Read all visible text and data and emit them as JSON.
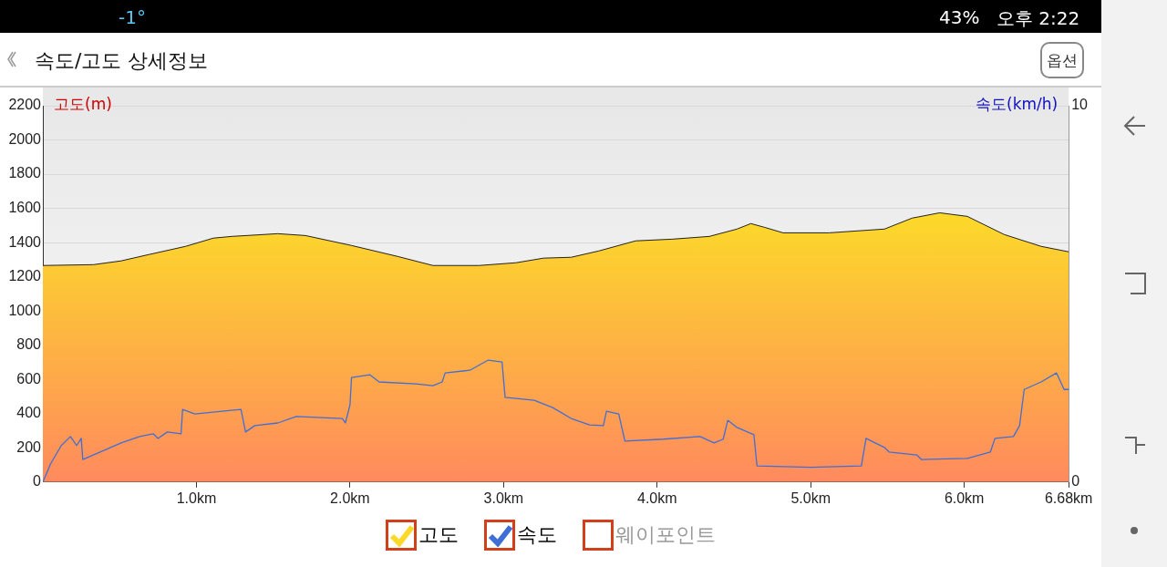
{
  "chart_data": {
    "type": "area",
    "title": "속도/고도 상세정보",
    "ylabel": "고도(m)",
    "y2label": "속도(km/h)",
    "annotations": [
      "-1°",
      "43%",
      "오후 2:22",
      "옵션",
      "웨이포인트"
    ],
    "xlim": [
      0,
      6.68
    ],
    "xticks": [
      {
        "value": 1,
        "label": "1.0km"
      },
      {
        "value": 2,
        "label": "2.0km"
      },
      {
        "value": 3,
        "label": "3.0km"
      },
      {
        "value": 4,
        "label": "4.0km"
      },
      {
        "value": 5,
        "label": "5.0km"
      },
      {
        "value": 6,
        "label": "6.0km"
      },
      {
        "value": 6.68,
        "label": "6.68km"
      }
    ],
    "ylim": [
      0,
      2200
    ],
    "yticks": [
      0,
      200,
      400,
      600,
      800,
      1000,
      1200,
      1400,
      1600,
      1800,
      2000,
      2200
    ],
    "y2lim": [
      0,
      10
    ],
    "y2ticks": [
      0,
      10
    ],
    "grid": "y",
    "legend": "bottom",
    "marker": "none",
    "series": [
      {
        "name": "고도",
        "type": "area",
        "color": "#fcd82a",
        "x": [
          0,
          0.33,
          0.51,
          0.69,
          0.93,
          1.11,
          1.23,
          1.53,
          1.71,
          2.01,
          2.31,
          2.54,
          2.84,
          3.08,
          3.26,
          3.44,
          3.62,
          3.86,
          4.1,
          4.34,
          4.52,
          4.61,
          4.7,
          4.82,
          5.12,
          5.48,
          5.66,
          5.84,
          6.02,
          6.26,
          6.5,
          6.68
        ],
        "values": [
          1266,
          1271,
          1293,
          1330,
          1378,
          1426,
          1436,
          1452,
          1441,
          1383,
          1319,
          1266,
          1266,
          1282,
          1309,
          1314,
          1351,
          1410,
          1420,
          1436,
          1479,
          1511,
          1489,
          1457,
          1457,
          1479,
          1543,
          1574,
          1553,
          1447,
          1378,
          1346
        ]
      },
      {
        "name": "속도",
        "type": "line",
        "axis": "y2",
        "color": "#3f6fd6",
        "x": [
          0,
          0.05,
          0.12,
          0.18,
          0.22,
          0.25,
          0.26,
          0.51,
          0.63,
          0.72,
          0.75,
          0.81,
          0.9,
          0.91,
          0.99,
          1.29,
          1.32,
          1.38,
          1.53,
          1.65,
          1.95,
          1.97,
          2,
          2.01,
          2.13,
          2.19,
          2.43,
          2.54,
          2.6,
          2.62,
          2.78,
          2.9,
          2.99,
          3.01,
          3.2,
          3.32,
          3.44,
          3.56,
          3.65,
          3.67,
          3.75,
          3.79,
          4.04,
          4.28,
          4.37,
          4.43,
          4.46,
          4.52,
          4.63,
          4.65,
          5,
          5.33,
          5.36,
          5.48,
          5.51,
          5.69,
          5.72,
          6.02,
          6.17,
          6.2,
          6.32,
          6.36,
          6.39,
          6.5,
          6.6,
          6.65,
          6.68
        ],
        "values": [
          0,
          0.48,
          0.97,
          1.21,
          0.97,
          1.16,
          0.6,
          1.04,
          1.21,
          1.28,
          1.16,
          1.33,
          1.28,
          1.93,
          1.81,
          1.93,
          1.33,
          1.5,
          1.57,
          1.74,
          1.69,
          1.57,
          2.05,
          2.78,
          2.85,
          2.66,
          2.61,
          2.56,
          2.66,
          2.9,
          2.97,
          3.24,
          3.19,
          2.25,
          2.17,
          1.98,
          1.69,
          1.52,
          1.5,
          1.88,
          1.81,
          1.09,
          1.14,
          1.21,
          1.04,
          1.14,
          1.64,
          1.45,
          1.26,
          0.43,
          0.39,
          0.43,
          1.16,
          0.92,
          0.8,
          0.72,
          0.6,
          0.63,
          0.8,
          1.16,
          1.21,
          1.5,
          2.46,
          2.66,
          2.9,
          2.46,
          2.46
        ]
      }
    ]
  }
}
